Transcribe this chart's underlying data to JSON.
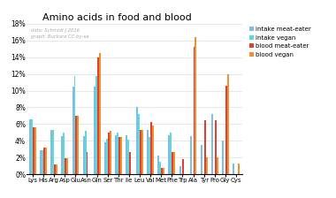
{
  "title": "Amino acids in food and blood",
  "watermark": "data: Schmidt J 2016\ngraph: Buckare CC-by-sa",
  "categories": [
    "Lys",
    "His",
    "Arg",
    "Asp",
    "Glu",
    "Asn",
    "Gln",
    "Ser",
    "Thr",
    "Ile",
    "Leu",
    "Val",
    "Met",
    "Phe",
    "Trp",
    "Ala",
    "Tyr",
    "Pro",
    "Gly",
    "Cys"
  ],
  "series_names": [
    "intake meat-eater",
    "intake vegan",
    "blood meat-eater",
    "blood vegan"
  ],
  "series_data": {
    "intake meat-eater": [
      0.066,
      0.029,
      0.053,
      0.046,
      0.105,
      0.046,
      0.105,
      0.038,
      0.047,
      0.047,
      0.08,
      0.053,
      0.022,
      0.047,
      0.01,
      0.046,
      0.035,
      0.072,
      0.04,
      0.013
    ],
    "intake vegan": [
      0.066,
      0.029,
      0.053,
      0.05,
      0.118,
      0.052,
      0.118,
      0.042,
      0.05,
      0.041,
      0.072,
      0.045,
      0.015,
      0.05,
      0.0,
      0.0,
      0.0,
      0.0,
      0.0,
      0.0
    ],
    "blood meat-eater": [
      0.056,
      0.032,
      0.012,
      0.019,
      0.07,
      0.027,
      0.14,
      0.05,
      0.045,
      0.027,
      0.053,
      0.063,
      0.007,
      0.027,
      0.018,
      0.152,
      0.065,
      0.065,
      0.106,
      0.0
    ],
    "blood vegan": [
      0.056,
      0.032,
      0.012,
      0.019,
      0.07,
      0.0,
      0.145,
      0.052,
      0.045,
      0.0,
      0.053,
      0.058,
      0.007,
      0.027,
      0.0,
      0.164,
      0.02,
      0.02,
      0.12,
      0.013
    ]
  },
  "colors": {
    "intake meat-eater": "#7abfe8",
    "intake vegan": "#60d8d8",
    "blood meat-eater": "#e04030",
    "blood vegan": "#f09030"
  },
  "ytick_labels": [
    "0%",
    "2%",
    "4%",
    "6%",
    "8%",
    "10%",
    "12%",
    "14%",
    "16%",
    "18%"
  ],
  "ytick_vals": [
    0,
    0.02,
    0.04,
    0.06,
    0.08,
    0.1,
    0.12,
    0.14,
    0.16,
    0.18
  ]
}
